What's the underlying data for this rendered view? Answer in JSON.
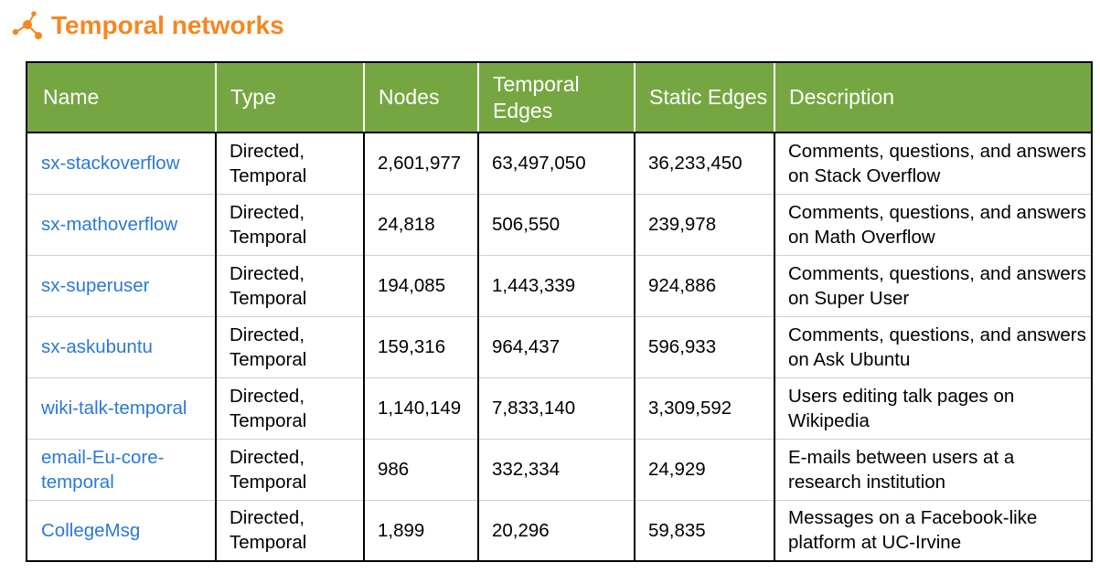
{
  "header": {
    "title": "Temporal networks",
    "logo_icon": "molecule-nodes-icon",
    "accent_color": "#f5871f"
  },
  "table": {
    "header_color": "#76a641",
    "link_color": "#2a79d4",
    "columns": [
      "Name",
      "Type",
      "Nodes",
      "Temporal Edges",
      "Static Edges",
      "Description"
    ],
    "rows": [
      {
        "name": "sx-stackoverflow",
        "type": "Directed, Temporal",
        "nodes": "2,601,977",
        "temporal_edges": "63,497,050",
        "static_edges": "36,233,450",
        "description": "Comments, questions, and answers on Stack Overflow"
      },
      {
        "name": "sx-mathoverflow",
        "type": "Directed, Temporal",
        "nodes": "24,818",
        "temporal_edges": "506,550",
        "static_edges": "239,978",
        "description": "Comments, questions, and answers on Math Overflow"
      },
      {
        "name": "sx-superuser",
        "type": "Directed, Temporal",
        "nodes": "194,085",
        "temporal_edges": "1,443,339",
        "static_edges": "924,886",
        "description": "Comments, questions, and answers on Super User"
      },
      {
        "name": "sx-askubuntu",
        "type": "Directed, Temporal",
        "nodes": "159,316",
        "temporal_edges": "964,437",
        "static_edges": "596,933",
        "description": "Comments, questions, and answers on Ask Ubuntu"
      },
      {
        "name": "wiki-talk-temporal",
        "type": "Directed, Temporal",
        "nodes": "1,140,149",
        "temporal_edges": "7,833,140",
        "static_edges": "3,309,592",
        "description": "Users editing talk pages on Wikipedia"
      },
      {
        "name": "email-Eu-core-temporal",
        "type": "Directed, Temporal",
        "nodes": "986",
        "temporal_edges": "332,334",
        "static_edges": "24,929",
        "description": "E-mails between users at a research institution"
      },
      {
        "name": "CollegeMsg",
        "type": "Directed, Temporal",
        "nodes": "1,899",
        "temporal_edges": "20,296",
        "static_edges": "59,835",
        "description": "Messages on a Facebook-like platform at UC-Irvine"
      }
    ]
  }
}
